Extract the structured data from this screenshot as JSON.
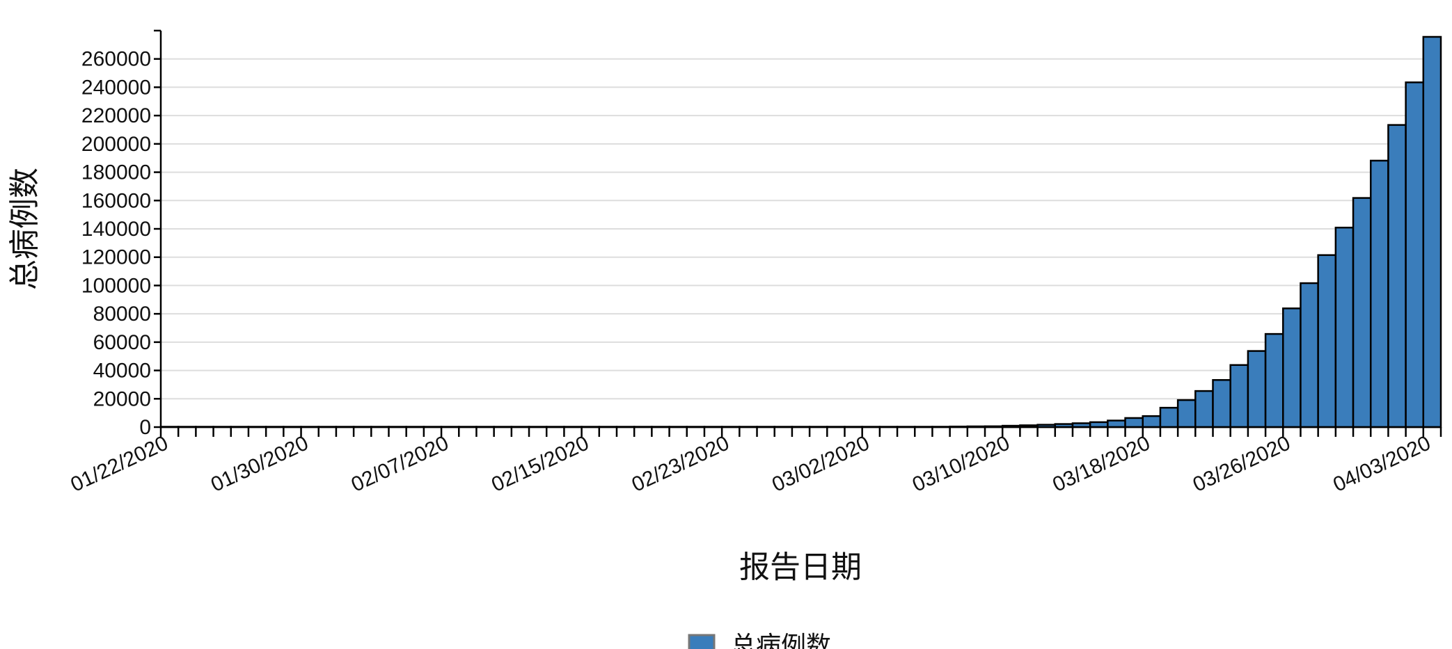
{
  "chart_data": {
    "type": "bar",
    "title": "",
    "xlabel": "报告日期",
    "ylabel": "总病例数",
    "ylim": [
      0,
      280000
    ],
    "yticks": [
      0,
      20000,
      40000,
      60000,
      80000,
      100000,
      120000,
      140000,
      160000,
      180000,
      200000,
      220000,
      240000,
      260000
    ],
    "x_tick_labels": [
      "01/22/2020",
      "01/30/2020",
      "02/07/2020",
      "02/15/2020",
      "02/23/2020",
      "03/02/2020",
      "03/10/2020",
      "03/18/2020",
      "03/26/2020",
      "04/03/2020"
    ],
    "grid": "horizontal",
    "legend_position": "bottom-center",
    "bar_color": "#3a7dbb",
    "series": [
      {
        "name": "总病例数",
        "color": "#3a7dbb",
        "categories": [
          "01/22/2020",
          "01/23/2020",
          "01/24/2020",
          "01/25/2020",
          "01/26/2020",
          "01/27/2020",
          "01/28/2020",
          "01/29/2020",
          "01/30/2020",
          "01/31/2020",
          "02/01/2020",
          "02/02/2020",
          "02/03/2020",
          "02/04/2020",
          "02/05/2020",
          "02/06/2020",
          "02/07/2020",
          "02/08/2020",
          "02/09/2020",
          "02/10/2020",
          "02/11/2020",
          "02/12/2020",
          "02/13/2020",
          "02/14/2020",
          "02/15/2020",
          "02/16/2020",
          "02/17/2020",
          "02/18/2020",
          "02/19/2020",
          "02/20/2020",
          "02/21/2020",
          "02/22/2020",
          "02/23/2020",
          "02/24/2020",
          "02/25/2020",
          "02/26/2020",
          "02/27/2020",
          "02/28/2020",
          "02/29/2020",
          "03/01/2020",
          "03/02/2020",
          "03/03/2020",
          "03/04/2020",
          "03/05/2020",
          "03/06/2020",
          "03/07/2020",
          "03/08/2020",
          "03/09/2020",
          "03/10/2020",
          "03/11/2020",
          "03/12/2020",
          "03/13/2020",
          "03/14/2020",
          "03/15/2020",
          "03/16/2020",
          "03/17/2020",
          "03/18/2020",
          "03/19/2020",
          "03/20/2020",
          "03/21/2020",
          "03/22/2020",
          "03/23/2020",
          "03/24/2020",
          "03/25/2020",
          "03/26/2020",
          "03/27/2020",
          "03/28/2020",
          "03/29/2020",
          "03/30/2020",
          "03/31/2020",
          "04/01/2020",
          "04/02/2020",
          "04/03/2020"
        ],
        "values": [
          1,
          1,
          2,
          2,
          5,
          5,
          5,
          5,
          5,
          7,
          8,
          8,
          11,
          11,
          11,
          11,
          11,
          11,
          11,
          11,
          12,
          12,
          13,
          13,
          13,
          13,
          13,
          13,
          13,
          13,
          15,
          15,
          15,
          51,
          51,
          57,
          58,
          60,
          68,
          74,
          98,
          118,
          149,
          217,
          262,
          402,
          518,
          583,
          959,
          1281,
          1663,
          2179,
          2727,
          3499,
          4632,
          6421,
          7786,
          13680,
          19101,
          25493,
          33276,
          43847,
          53740,
          65778,
          83836,
          101657,
          121478,
          140886,
          161807,
          188172,
          213372,
          243453,
          275586
        ]
      }
    ]
  }
}
